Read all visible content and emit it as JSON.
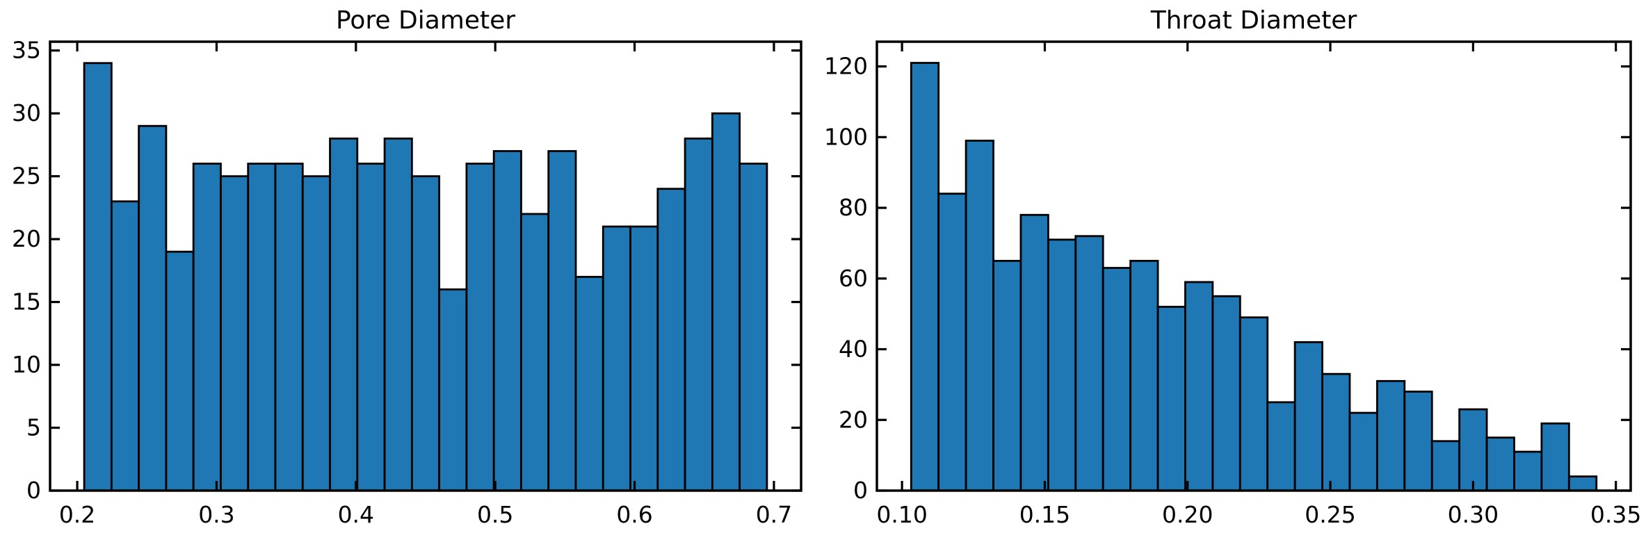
{
  "figure": {
    "background": "#ffffff"
  },
  "chart_data": [
    {
      "type": "bar",
      "subtype": "histogram",
      "title": "Pore Diameter",
      "xlabel": "",
      "ylabel": "",
      "bar_color": "#1f77b4",
      "bar_edge_color": "#000000",
      "bin_start": 0.205,
      "bin_width": 0.0196,
      "counts": [
        34,
        23,
        29,
        19,
        26,
        25,
        26,
        26,
        25,
        28,
        26,
        28,
        25,
        16,
        26,
        27,
        22,
        27,
        17,
        21,
        21,
        24,
        28,
        30,
        26
      ],
      "xlim": [
        0.1805,
        0.7195
      ],
      "ylim": [
        0,
        35.7
      ],
      "xticks": [
        0.2,
        0.3,
        0.4,
        0.5,
        0.6,
        0.7
      ],
      "xtick_labels": [
        "0.2",
        "0.3",
        "0.4",
        "0.5",
        "0.6",
        "0.7"
      ],
      "yticks": [
        0,
        5,
        10,
        15,
        20,
        25,
        30,
        35
      ],
      "ytick_labels": [
        "0",
        "5",
        "10",
        "15",
        "20",
        "25",
        "30",
        "35"
      ],
      "grid": "off",
      "legend": "none"
    },
    {
      "type": "bar",
      "subtype": "histogram",
      "title": "Throat Diameter",
      "xlabel": "",
      "ylabel": "",
      "bar_color": "#1f77b4",
      "bar_edge_color": "#000000",
      "bin_start": 0.1032,
      "bin_width": 0.0096,
      "counts": [
        121,
        84,
        99,
        65,
        78,
        71,
        72,
        63,
        65,
        52,
        59,
        55,
        49,
        25,
        42,
        33,
        22,
        31,
        28,
        14,
        23,
        15,
        11,
        19,
        4
      ],
      "xlim": [
        0.0912,
        0.3552
      ],
      "ylim": [
        0,
        127
      ],
      "xticks": [
        0.1,
        0.15,
        0.2,
        0.25,
        0.3,
        0.35
      ],
      "xtick_labels": [
        "0.10",
        "0.15",
        "0.20",
        "0.25",
        "0.30",
        "0.35"
      ],
      "yticks": [
        0,
        20,
        40,
        60,
        80,
        100,
        120
      ],
      "ytick_labels": [
        "0",
        "20",
        "40",
        "60",
        "80",
        "100",
        "120"
      ],
      "grid": "off",
      "legend": "none"
    }
  ]
}
